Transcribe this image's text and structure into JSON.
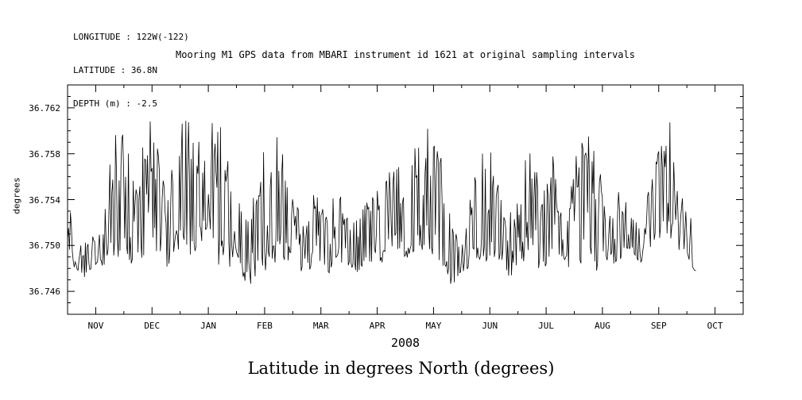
{
  "info_block": {
    "line1": "LONGITUDE : 122W(-122)",
    "line2": "LATITUDE : 36.8N",
    "line3": "DEPTH (m) : -2.5"
  },
  "caption": "Latitude in degrees North (degrees)",
  "colors": {
    "line": "#000000",
    "background": "#ffffff",
    "text": "#000000"
  },
  "chart_data": {
    "type": "line",
    "title": "Mooring M1 GPS data from MBARI instrument id 1621 at original sampling intervals",
    "xlabel": "2008",
    "ylabel": "degrees",
    "x_ticklabels": [
      "NOV",
      "DEC",
      "JAN",
      "FEB",
      "MAR",
      "APR",
      "MAY",
      "JUN",
      "JUL",
      "AUG",
      "SEP",
      "OCT"
    ],
    "y_ticks": [
      36.746,
      36.75,
      36.754,
      36.758,
      36.762
    ],
    "ylim": [
      36.744,
      36.764
    ],
    "grid": false,
    "legend": false,
    "seed": 7,
    "series": [
      {
        "name": "GPS latitude (degrees North)",
        "envelope": {
          "t": [
            0.0,
            0.017,
            0.033,
            0.05,
            0.067,
            0.083,
            0.1,
            0.117,
            0.133,
            0.15,
            0.167,
            0.183,
            0.2,
            0.217,
            0.233,
            0.25,
            0.267,
            0.283,
            0.3,
            0.317,
            0.333,
            0.35,
            0.367,
            0.383,
            0.4,
            0.417,
            0.433,
            0.45,
            0.467,
            0.483,
            0.5,
            0.517,
            0.533,
            0.55,
            0.567,
            0.583,
            0.6,
            0.617,
            0.633,
            0.65,
            0.667,
            0.683,
            0.7,
            0.717,
            0.733,
            0.75,
            0.767,
            0.783,
            0.8,
            0.817,
            0.833,
            0.85,
            0.867,
            0.883,
            0.9,
            0.93
          ],
          "lo": [
            36.749,
            36.747,
            36.747,
            36.748,
            36.748,
            36.748,
            36.747,
            36.749,
            36.748,
            36.747,
            36.749,
            36.748,
            36.75,
            36.748,
            36.747,
            36.748,
            36.746,
            36.747,
            36.747,
            36.748,
            36.748,
            36.747,
            36.748,
            36.747,
            36.748,
            36.748,
            36.747,
            36.748,
            36.748,
            36.749,
            36.748,
            36.749,
            36.749,
            36.748,
            36.746,
            36.747,
            36.748,
            36.748,
            36.748,
            36.746,
            36.748,
            36.748,
            36.747,
            36.748,
            36.748,
            36.747,
            36.748,
            36.747,
            36.748,
            36.748,
            36.749,
            36.748,
            36.749,
            36.75,
            36.749,
            36.747
          ],
          "hi": [
            36.757,
            36.75,
            36.751,
            36.752,
            36.76,
            36.761,
            36.756,
            36.762,
            36.762,
            36.758,
            36.763,
            36.762,
            36.76,
            36.762,
            36.761,
            36.757,
            36.753,
            36.759,
            36.762,
            36.761,
            36.755,
            36.752,
            36.757,
            36.753,
            36.756,
            36.752,
            36.754,
            36.758,
            36.755,
            36.759,
            36.755,
            36.76,
            36.761,
            36.76,
            36.753,
            36.751,
            36.757,
            36.76,
            36.758,
            36.752,
            36.756,
            36.761,
            36.755,
            36.759,
            36.753,
            36.758,
            36.761,
            36.759,
            36.753,
            36.756,
            36.753,
            36.752,
            36.758,
            36.762,
            36.762,
            36.75
          ]
        }
      }
    ]
  }
}
